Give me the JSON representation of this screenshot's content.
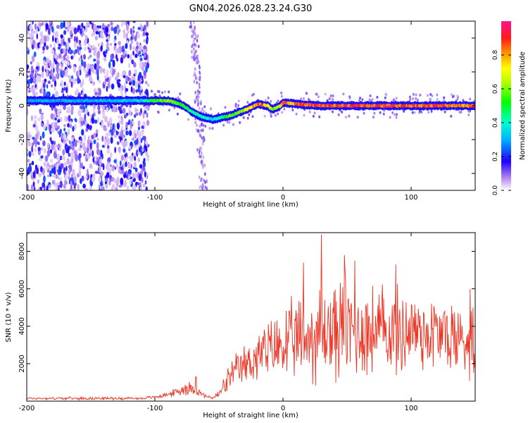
{
  "title": "GN04.2026.028.23.24.G30",
  "chart_data": [
    {
      "type": "heatmap",
      "title": "",
      "xlabel": "Height of straight line (km)",
      "ylabel": "Frequency (Hz)",
      "xlim": [
        -200,
        150
      ],
      "ylim": [
        -50,
        50
      ],
      "xticks": [
        -200,
        -100,
        0,
        100
      ],
      "yticks": [
        -40,
        -20,
        0,
        20,
        40
      ],
      "xtick_labels": [
        "-200",
        "-100",
        "0",
        "100"
      ],
      "ytick_labels": [
        "-40",
        "-20",
        "0",
        "20",
        "40"
      ],
      "colorbar": {
        "label": "Normalized spectral amplitude",
        "range": [
          0,
          1
        ],
        "ticks": [
          0.0,
          0.2,
          0.4,
          0.6,
          0.8
        ],
        "tick_labels": [
          "0.0",
          "0.2",
          "0.4",
          "0.6",
          "0.8"
        ]
      },
      "ridge_trace": {
        "x": [
          -200,
          -150,
          -110,
          -100,
          -90,
          -80,
          -70,
          -62,
          -55,
          -48,
          -42,
          -35,
          -28,
          -20,
          -12,
          -8,
          -5,
          -2,
          0,
          10,
          30,
          60,
          100,
          150
        ],
        "freq": [
          3,
          3,
          3,
          3,
          3,
          1,
          -4,
          -7,
          -8,
          -7,
          -6,
          -4,
          -2,
          1,
          0,
          -2,
          -1,
          0,
          2,
          1,
          0,
          0,
          0,
          0
        ],
        "amplitude": [
          0.3,
          0.3,
          0.35,
          0.55,
          0.6,
          0.55,
          0.45,
          0.4,
          0.35,
          0.45,
          0.55,
          0.6,
          0.7,
          0.85,
          0.8,
          0.6,
          0.6,
          0.75,
          0.9,
          0.85,
          0.9,
          0.9,
          0.9,
          0.85
        ]
      },
      "noise_region": {
        "x_from": -200,
        "x_to": -105
      },
      "secondary_streak": {
        "x": [
          -62,
          -70
        ],
        "freq": [
          -50,
          50
        ]
      }
    },
    {
      "type": "line",
      "title": "",
      "xlabel": "Height of straight line (km)",
      "ylabel": "SNR (10 * v/v)",
      "xlim": [
        -200,
        150
      ],
      "ylim": [
        0,
        9000
      ],
      "xticks": [
        -200,
        -100,
        0,
        100
      ],
      "yticks": [
        2000,
        4000,
        6000,
        8000
      ],
      "xtick_labels": [
        "-200",
        "-100",
        "0",
        "100"
      ],
      "ytick_labels": [
        "2000",
        "4000",
        "6000",
        "8000"
      ],
      "color": "#ee3322",
      "envelope": {
        "x": [
          -200,
          -150,
          -110,
          -100,
          -90,
          -80,
          -75,
          -70,
          -65,
          -60,
          -55,
          -50,
          -45,
          -40,
          -30,
          -20,
          -10,
          0,
          10,
          20,
          25,
          30,
          40,
          50,
          60,
          70,
          80,
          90,
          100,
          110,
          120,
          130,
          140,
          150
        ],
        "mean": [
          150,
          150,
          150,
          220,
          350,
          550,
          750,
          650,
          450,
          250,
          180,
          350,
          900,
          1400,
          1900,
          2400,
          2700,
          3000,
          3200,
          3400,
          3500,
          3700,
          3800,
          3900,
          3800,
          3700,
          3800,
          3600,
          3900,
          3700,
          3600,
          3500,
          3300,
          3400
        ],
        "spread": [
          80,
          80,
          80,
          100,
          150,
          300,
          500,
          300,
          200,
          120,
          100,
          300,
          600,
          900,
          1200,
          1600,
          1800,
          2200,
          2400,
          2600,
          2800,
          3200,
          3000,
          3000,
          2900,
          2800,
          2700,
          2600,
          2600,
          2500,
          2400,
          2300,
          2300,
          2200
        ]
      },
      "peaks": [
        {
          "x": 30,
          "y": 8900
        },
        {
          "x": 48,
          "y": 7800
        },
        {
          "x": 56,
          "y": 7500
        },
        {
          "x": 48.5,
          "y": 7000
        },
        {
          "x": 88,
          "y": 7300
        },
        {
          "x": 16,
          "y": 7400
        },
        {
          "x": 146,
          "y": 6000
        },
        {
          "x": -68,
          "y": 1300
        }
      ]
    }
  ]
}
